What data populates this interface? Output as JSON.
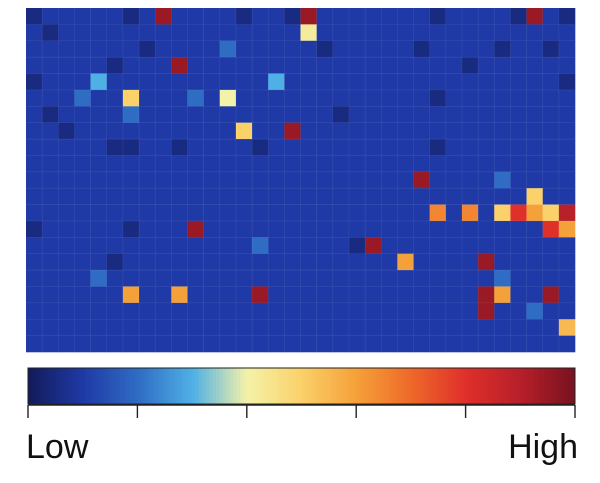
{
  "chart_data": {
    "type": "heatmap",
    "title": "",
    "xlabel": "",
    "ylabel": "",
    "n_cols": 34,
    "n_rows": 21,
    "value_range": [
      0,
      1
    ],
    "cells_note": "",
    "colorbar": {
      "low_label": "Low",
      "high_label": "High",
      "ticks": [
        0,
        0.2,
        0.4,
        0.6,
        0.8,
        1.0
      ]
    },
    "colormap": [
      "#131b5c",
      "#1f3aa6",
      "#2f6dc4",
      "#4fb0e6",
      "#f4f2a8",
      "#fbd16a",
      "#f5a13a",
      "#ee6a2a",
      "#e0302a",
      "#b8202a",
      "#7a1220"
    ],
    "rows": [
      [
        0.05,
        0.1,
        0.1,
        0.1,
        0.1,
        0.1,
        0.05,
        0.1,
        0.95,
        0.1,
        0.1,
        0.1,
        0.1,
        0.05,
        0.1,
        0.1,
        0.05,
        0.95,
        0.1,
        0.1,
        0.1,
        0.1,
        0.1,
        0.1,
        0.1,
        0.05,
        0.1,
        0.1,
        0.1,
        0.1,
        0.05,
        0.95,
        0.1,
        0.05
      ],
      [
        0.1,
        0.05,
        0.1,
        0.1,
        0.1,
        0.1,
        0.1,
        0.1,
        0.1,
        0.1,
        0.1,
        0.1,
        0.1,
        0.1,
        0.1,
        0.1,
        0.1,
        0.42,
        0.1,
        0.1,
        0.1,
        0.1,
        0.1,
        0.1,
        0.1,
        0.1,
        0.1,
        0.1,
        0.1,
        0.1,
        0.1,
        0.1,
        0.1,
        0.1
      ],
      [
        0.1,
        0.1,
        0.1,
        0.1,
        0.1,
        0.1,
        0.1,
        0.05,
        0.1,
        0.1,
        0.1,
        0.1,
        0.2,
        0.1,
        0.1,
        0.1,
        0.1,
        0.1,
        0.05,
        0.1,
        0.1,
        0.1,
        0.1,
        0.1,
        0.05,
        0.1,
        0.1,
        0.1,
        0.1,
        0.05,
        0.1,
        0.1,
        0.05,
        0.1
      ],
      [
        0.1,
        0.1,
        0.1,
        0.1,
        0.1,
        0.05,
        0.1,
        0.1,
        0.1,
        0.95,
        0.1,
        0.1,
        0.1,
        0.1,
        0.1,
        0.1,
        0.1,
        0.1,
        0.1,
        0.1,
        0.1,
        0.1,
        0.1,
        0.1,
        0.1,
        0.1,
        0.1,
        0.05,
        0.1,
        0.1,
        0.1,
        0.1,
        0.1,
        0.1
      ],
      [
        0.05,
        0.1,
        0.1,
        0.1,
        0.3,
        0.1,
        0.1,
        0.1,
        0.1,
        0.1,
        0.1,
        0.1,
        0.1,
        0.1,
        0.1,
        0.3,
        0.1,
        0.1,
        0.1,
        0.1,
        0.1,
        0.1,
        0.1,
        0.1,
        0.1,
        0.1,
        0.1,
        0.1,
        0.1,
        0.1,
        0.1,
        0.1,
        0.1,
        0.05
      ],
      [
        0.1,
        0.1,
        0.1,
        0.2,
        0.1,
        0.1,
        0.5,
        0.1,
        0.1,
        0.1,
        0.2,
        0.1,
        0.4,
        0.1,
        0.1,
        0.1,
        0.1,
        0.1,
        0.1,
        0.1,
        0.1,
        0.1,
        0.1,
        0.1,
        0.1,
        0.05,
        0.1,
        0.1,
        0.1,
        0.1,
        0.1,
        0.1,
        0.1,
        0.1
      ],
      [
        0.1,
        0.05,
        0.1,
        0.1,
        0.1,
        0.1,
        0.2,
        0.1,
        0.1,
        0.1,
        0.1,
        0.1,
        0.1,
        0.1,
        0.1,
        0.1,
        0.1,
        0.1,
        0.1,
        0.05,
        0.1,
        0.1,
        0.1,
        0.1,
        0.1,
        0.1,
        0.1,
        0.1,
        0.1,
        0.1,
        0.1,
        0.1,
        0.1,
        0.1
      ],
      [
        0.1,
        0.1,
        0.05,
        0.1,
        0.1,
        0.1,
        0.1,
        0.1,
        0.1,
        0.1,
        0.1,
        0.1,
        0.1,
        0.5,
        0.1,
        0.1,
        0.95,
        0.1,
        0.1,
        0.1,
        0.1,
        0.1,
        0.1,
        0.1,
        0.1,
        0.1,
        0.1,
        0.1,
        0.1,
        0.1,
        0.1,
        0.1,
        0.1,
        0.1
      ],
      [
        0.1,
        0.1,
        0.1,
        0.1,
        0.1,
        0.05,
        0.05,
        0.1,
        0.1,
        0.05,
        0.1,
        0.1,
        0.1,
        0.1,
        0.05,
        0.1,
        0.1,
        0.1,
        0.1,
        0.1,
        0.1,
        0.1,
        0.1,
        0.1,
        0.1,
        0.05,
        0.1,
        0.1,
        0.1,
        0.1,
        0.1,
        0.1,
        0.1,
        0.1
      ],
      [
        0.1,
        0.1,
        0.1,
        0.1,
        0.1,
        0.1,
        0.1,
        0.1,
        0.1,
        0.1,
        0.1,
        0.1,
        0.1,
        0.1,
        0.1,
        0.1,
        0.1,
        0.1,
        0.1,
        0.1,
        0.1,
        0.1,
        0.1,
        0.1,
        0.1,
        0.1,
        0.1,
        0.1,
        0.1,
        0.1,
        0.1,
        0.1,
        0.1,
        0.1
      ],
      [
        0.1,
        0.1,
        0.1,
        0.1,
        0.1,
        0.1,
        0.1,
        0.1,
        0.1,
        0.1,
        0.1,
        0.1,
        0.1,
        0.1,
        0.1,
        0.1,
        0.1,
        0.1,
        0.1,
        0.1,
        0.1,
        0.1,
        0.1,
        0.1,
        0.95,
        0.1,
        0.1,
        0.1,
        0.1,
        0.2,
        0.1,
        0.1,
        0.1,
        0.1
      ],
      [
        0.1,
        0.1,
        0.1,
        0.1,
        0.1,
        0.1,
        0.1,
        0.1,
        0.1,
        0.1,
        0.1,
        0.1,
        0.1,
        0.1,
        0.1,
        0.1,
        0.1,
        0.1,
        0.1,
        0.1,
        0.1,
        0.1,
        0.1,
        0.1,
        0.1,
        0.1,
        0.1,
        0.1,
        0.1,
        0.1,
        0.1,
        0.5,
        0.1,
        0.1
      ],
      [
        0.1,
        0.1,
        0.1,
        0.1,
        0.1,
        0.1,
        0.1,
        0.1,
        0.1,
        0.1,
        0.1,
        0.1,
        0.1,
        0.1,
        0.1,
        0.1,
        0.1,
        0.1,
        0.1,
        0.1,
        0.1,
        0.1,
        0.1,
        0.1,
        0.1,
        0.65,
        0.1,
        0.65,
        0.1,
        0.5,
        0.8,
        0.6,
        0.5,
        0.9
      ],
      [
        0.05,
        0.1,
        0.1,
        0.1,
        0.1,
        0.1,
        0.05,
        0.1,
        0.1,
        0.1,
        0.95,
        0.1,
        0.1,
        0.1,
        0.1,
        0.1,
        0.1,
        0.1,
        0.1,
        0.1,
        0.1,
        0.1,
        0.1,
        0.1,
        0.1,
        0.1,
        0.1,
        0.1,
        0.1,
        0.1,
        0.1,
        0.1,
        0.8,
        0.6
      ],
      [
        0.1,
        0.1,
        0.1,
        0.1,
        0.1,
        0.1,
        0.1,
        0.1,
        0.1,
        0.1,
        0.1,
        0.1,
        0.1,
        0.1,
        0.2,
        0.1,
        0.1,
        0.1,
        0.1,
        0.1,
        0.05,
        0.95,
        0.1,
        0.1,
        0.1,
        0.1,
        0.1,
        0.1,
        0.1,
        0.1,
        0.1,
        0.1,
        0.1,
        0.1
      ],
      [
        0.1,
        0.1,
        0.1,
        0.1,
        0.1,
        0.05,
        0.1,
        0.1,
        0.1,
        0.1,
        0.1,
        0.1,
        0.1,
        0.1,
        0.1,
        0.1,
        0.1,
        0.1,
        0.1,
        0.1,
        0.1,
        0.1,
        0.1,
        0.6,
        0.1,
        0.1,
        0.1,
        0.1,
        0.95,
        0.1,
        0.1,
        0.1,
        0.1,
        0.1
      ],
      [
        0.1,
        0.1,
        0.1,
        0.1,
        0.2,
        0.1,
        0.1,
        0.1,
        0.1,
        0.1,
        0.1,
        0.1,
        0.1,
        0.1,
        0.1,
        0.1,
        0.1,
        0.1,
        0.1,
        0.1,
        0.1,
        0.1,
        0.1,
        0.1,
        0.1,
        0.1,
        0.1,
        0.1,
        0.1,
        0.2,
        0.1,
        0.1,
        0.1,
        0.1
      ],
      [
        0.1,
        0.1,
        0.1,
        0.1,
        0.1,
        0.1,
        0.6,
        0.1,
        0.1,
        0.6,
        0.1,
        0.1,
        0.1,
        0.1,
        0.95,
        0.1,
        0.1,
        0.1,
        0.1,
        0.1,
        0.1,
        0.1,
        0.1,
        0.1,
        0.1,
        0.1,
        0.1,
        0.1,
        0.95,
        0.6,
        0.1,
        0.1,
        0.95,
        0.1
      ],
      [
        0.1,
        0.1,
        0.1,
        0.1,
        0.1,
        0.1,
        0.1,
        0.1,
        0.1,
        0.1,
        0.1,
        0.1,
        0.1,
        0.1,
        0.1,
        0.1,
        0.1,
        0.1,
        0.1,
        0.1,
        0.1,
        0.1,
        0.1,
        0.1,
        0.1,
        0.1,
        0.1,
        0.1,
        0.95,
        0.1,
        0.1,
        0.2,
        0.1,
        0.1
      ],
      [
        0.1,
        0.1,
        0.1,
        0.1,
        0.1,
        0.1,
        0.1,
        0.1,
        0.1,
        0.1,
        0.1,
        0.1,
        0.1,
        0.1,
        0.1,
        0.1,
        0.1,
        0.1,
        0.1,
        0.1,
        0.1,
        0.1,
        0.1,
        0.1,
        0.1,
        0.1,
        0.1,
        0.1,
        0.1,
        0.1,
        0.1,
        0.1,
        0.1,
        0.55
      ],
      [
        0.1,
        0.1,
        0.1,
        0.1,
        0.1,
        0.1,
        0.1,
        0.1,
        0.1,
        0.1,
        0.1,
        0.1,
        0.1,
        0.1,
        0.1,
        0.1,
        0.1,
        0.1,
        0.1,
        0.1,
        0.1,
        0.1,
        0.1,
        0.1,
        0.1,
        0.1,
        0.1,
        0.1,
        0.1,
        0.1,
        0.1,
        0.1,
        0.1,
        0.1
      ]
    ]
  }
}
